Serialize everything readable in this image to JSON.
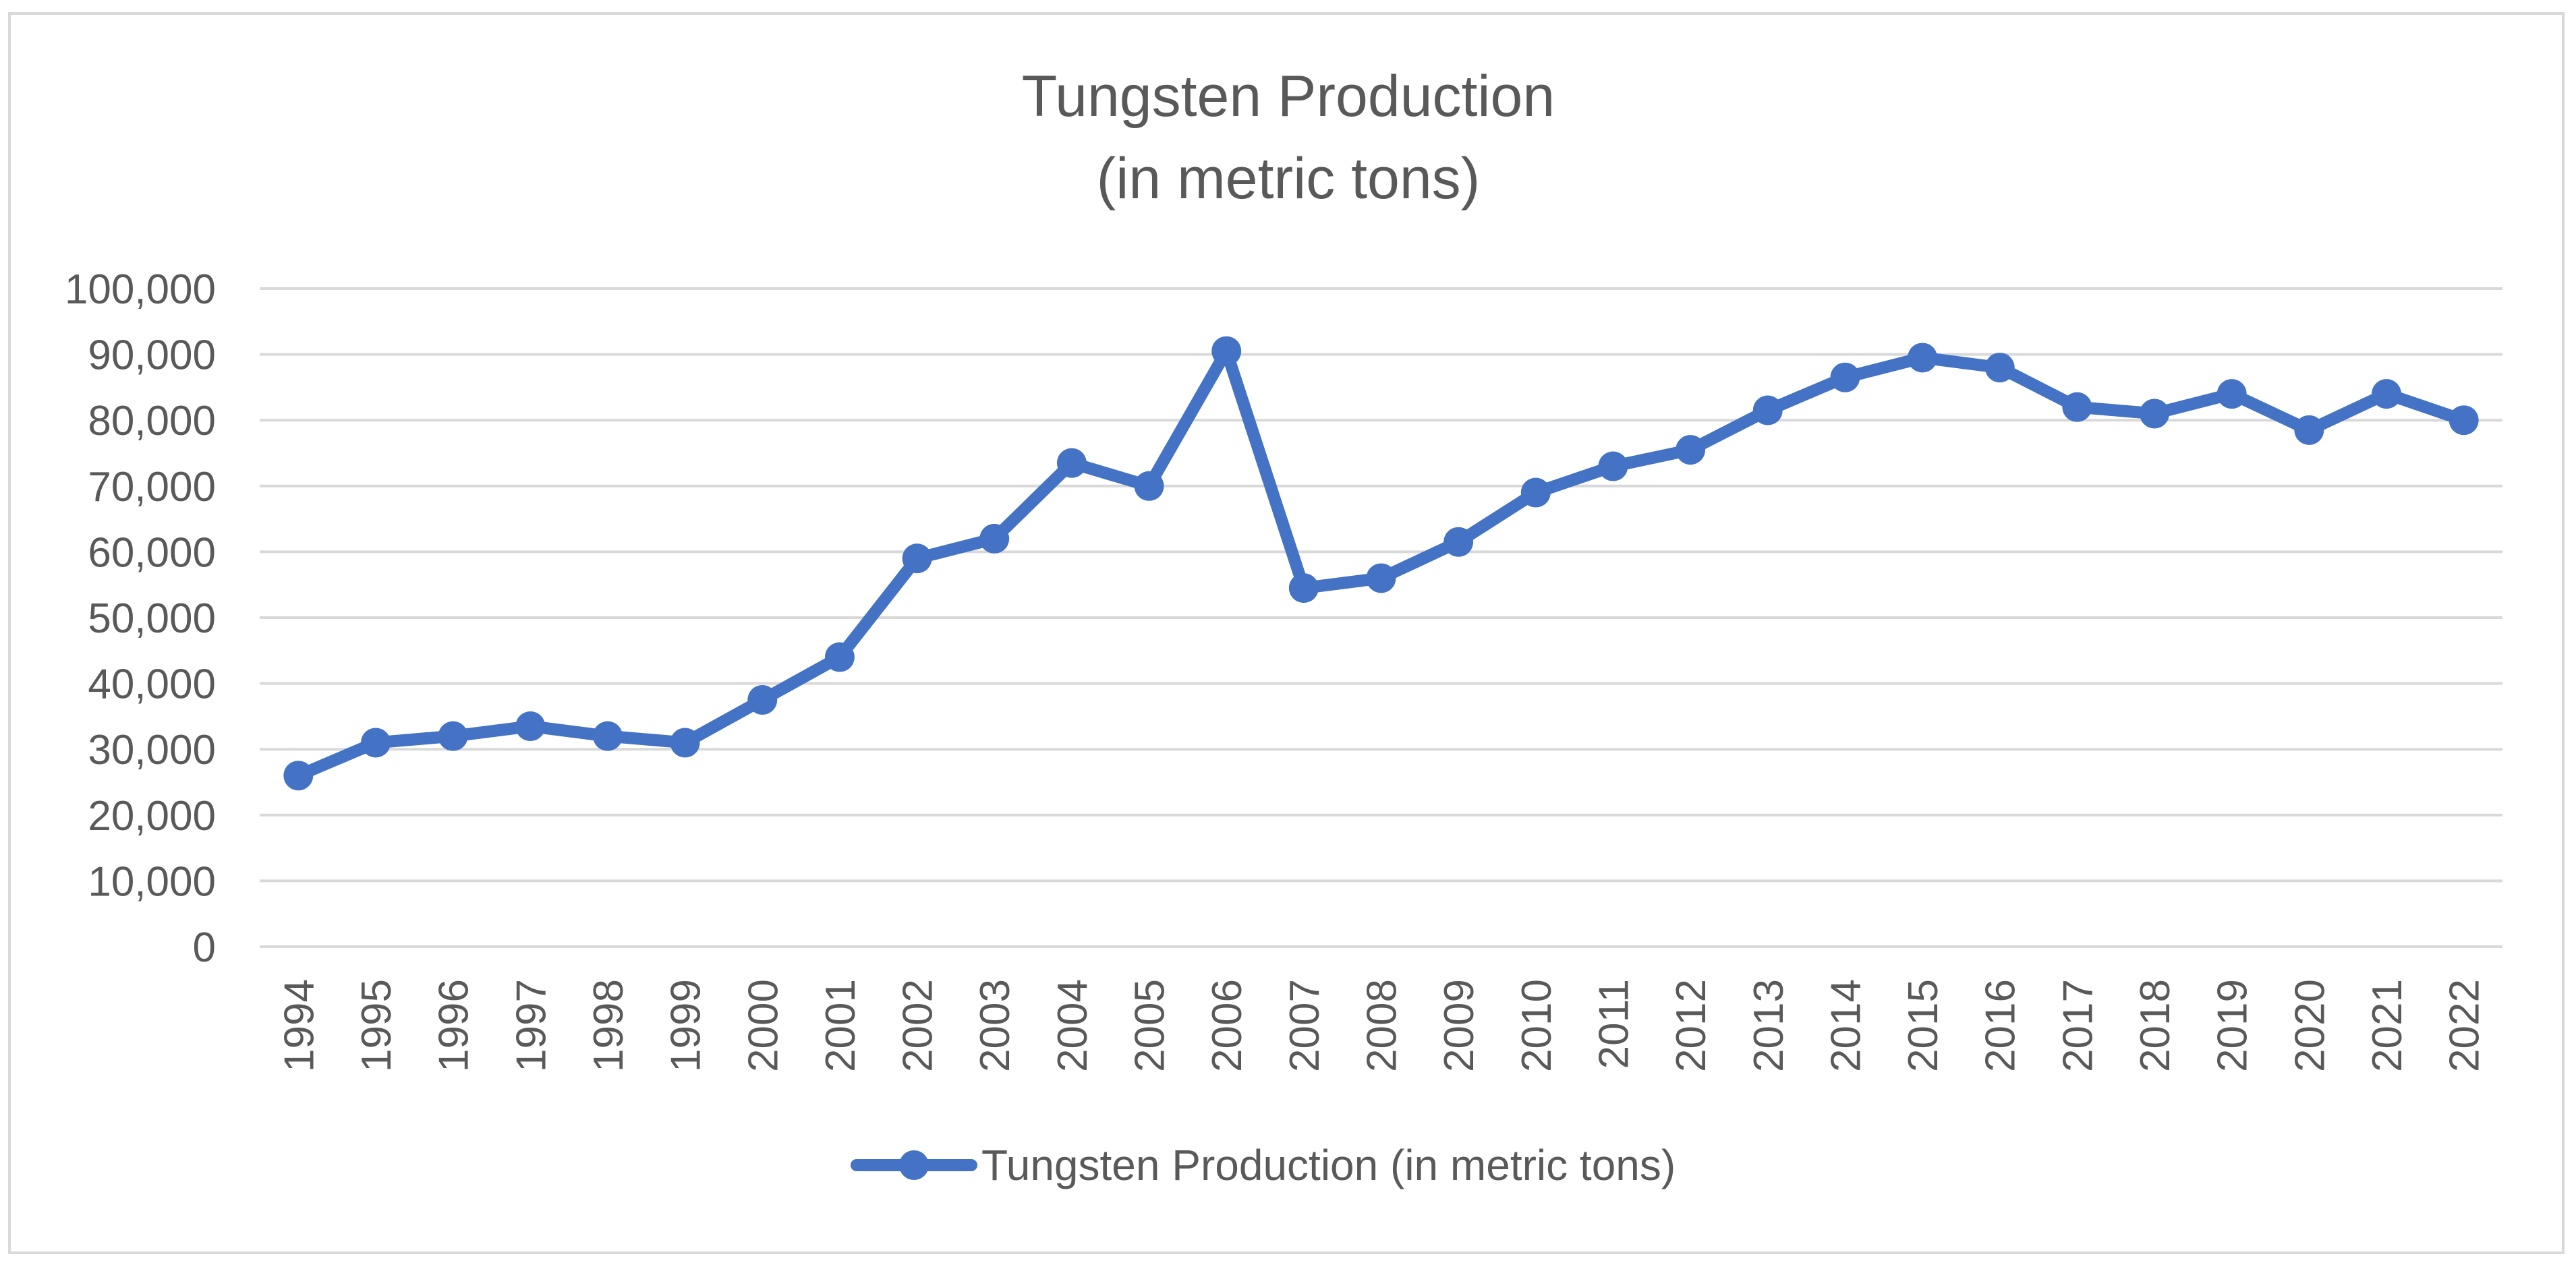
{
  "chart_data": {
    "type": "line",
    "title_line1": "Tungsten Production",
    "title_line2": "(in metric tons)",
    "xlabel": "",
    "ylabel": "",
    "ylim": [
      0,
      100000
    ],
    "ytick_step": 10000,
    "ytick_labels": [
      "0",
      "10,000",
      "20,000",
      "30,000",
      "40,000",
      "50,000",
      "60,000",
      "70,000",
      "80,000",
      "90,000",
      "100,000"
    ],
    "grid": true,
    "legend_position": "bottom-center",
    "categories": [
      "1994",
      "1995",
      "1996",
      "1997",
      "1998",
      "1999",
      "2000",
      "2001",
      "2002",
      "2003",
      "2004",
      "2005",
      "2006",
      "2007",
      "2008",
      "2009",
      "2010",
      "2011",
      "2012",
      "2013",
      "2014",
      "2015",
      "2016",
      "2017",
      "2018",
      "2019",
      "2020",
      "2021",
      "2022"
    ],
    "series": [
      {
        "name": "Tungsten Production (in metric tons)",
        "color": "#4472C4",
        "values": [
          26000,
          31000,
          32000,
          33500,
          32000,
          31000,
          37500,
          44000,
          59000,
          62000,
          73500,
          70000,
          90500,
          54500,
          56000,
          61500,
          69000,
          73000,
          75500,
          81500,
          86500,
          89500,
          88000,
          82000,
          81000,
          84000,
          78500,
          84000,
          80000
        ]
      }
    ]
  }
}
